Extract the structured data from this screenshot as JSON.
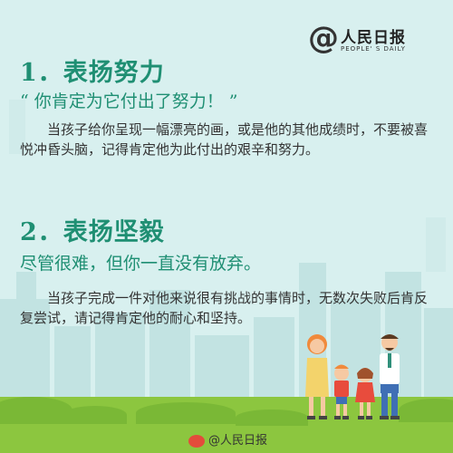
{
  "logo": {
    "at_symbol": "@",
    "name": "人民日报",
    "subtitle": "PEOPLE' S DAILY",
    "icon": "peoples-daily-logo"
  },
  "sections": [
    {
      "title": "1．表扬努力",
      "quote": "“ 你肯定为它付出了努力！ ”",
      "body": "当孩子给你呈现一幅漂亮的画，或是他的其他成绩时，不要被喜悦冲昏头脑，记得肯定他为此付出的艰辛和努力。"
    },
    {
      "title": "2．表扬坚毅",
      "quote": "尽管很难，但你一直没有放弃。",
      "body": "当孩子完成一件对他来说很有挑战的事情时，无数次失败后肯反复尝试，请记得肯定他的耐心和坚持。"
    }
  ],
  "watermark": {
    "text": "@人民日报",
    "icon": "weibo-icon"
  },
  "colors": {
    "background": "#d8f0ef",
    "title_green": "#1f8f73",
    "grass": "#8cc63f",
    "skyline": "#c2e3e2"
  }
}
